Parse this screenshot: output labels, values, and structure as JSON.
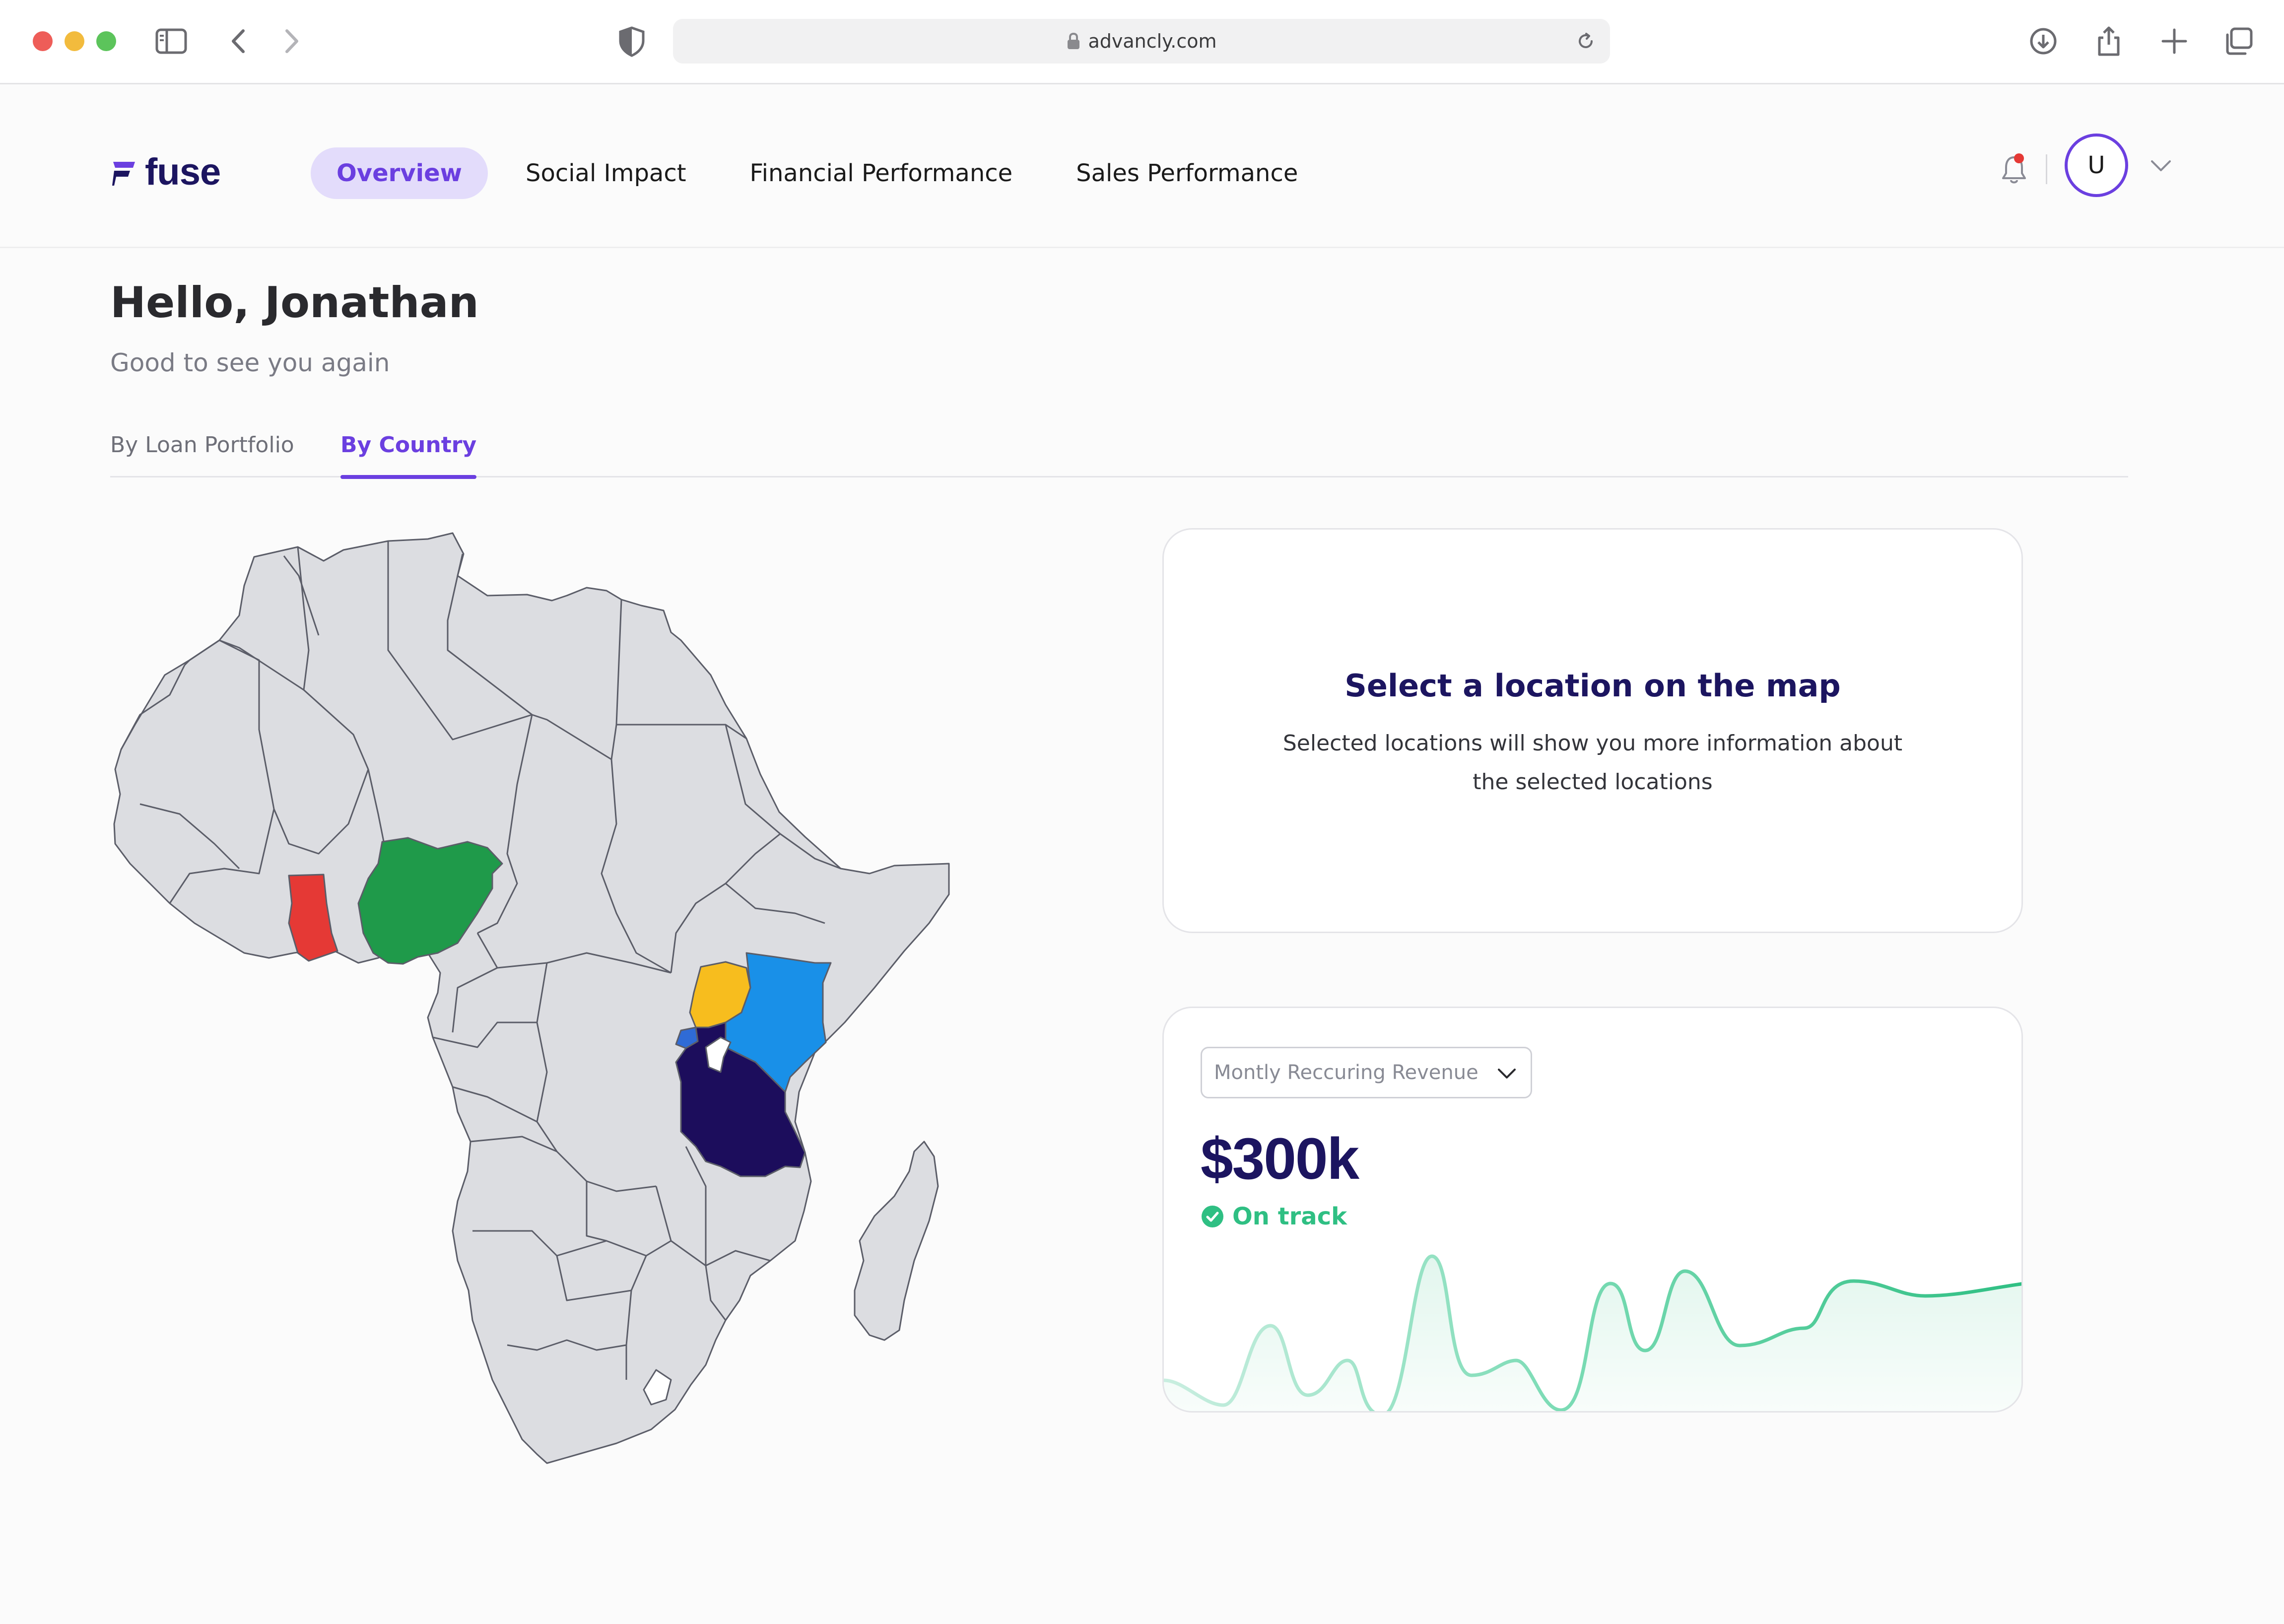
{
  "browser": {
    "url": "advancly.com",
    "icons": {
      "sidebar": "sidebar-icon",
      "back": "chevron-left-icon",
      "forward": "chevron-right-icon",
      "shield": "shield-icon",
      "lock": "lock-icon",
      "reload": "reload-icon",
      "download": "download-icon",
      "share": "share-icon",
      "new_tab": "plus-icon",
      "tabs": "tabs-overview-icon"
    }
  },
  "header": {
    "logo_text": "fuse",
    "nav": [
      {
        "label": "Overview",
        "active": true
      },
      {
        "label": "Social Impact",
        "active": false
      },
      {
        "label": "Financial Performance",
        "active": false
      },
      {
        "label": "Sales Performance",
        "active": false
      }
    ],
    "avatar_initial": "U",
    "has_notification": true
  },
  "greeting": {
    "title": "Hello, Jonathan",
    "subtitle": "Good to see you again"
  },
  "tabs": [
    {
      "label": "By Loan Portfolio",
      "active": false
    },
    {
      "label": "By Country",
      "active": true
    }
  ],
  "map": {
    "region": "Africa",
    "base_color": "#dcdde1",
    "border_color": "#5b5d68",
    "highlighted": [
      {
        "country": "Ghana",
        "color": "#e53935"
      },
      {
        "country": "Nigeria",
        "color": "#1f9a4a"
      },
      {
        "country": "Uganda",
        "color": "#f7bd1e"
      },
      {
        "country": "Kenya",
        "color": "#1990e8"
      },
      {
        "country": "Tanzania",
        "color": "#1c0d5c"
      },
      {
        "country": "Rwanda",
        "color": "#2f6bd6"
      }
    ]
  },
  "info_card": {
    "title": "Select a location on the map",
    "body": "Selected locations will show you more information about the selected locations"
  },
  "revenue_card": {
    "dropdown_value": "Montly Reccuring Revenue",
    "value": "$300k",
    "status": "On track",
    "status_color": "#2fbf83"
  }
}
